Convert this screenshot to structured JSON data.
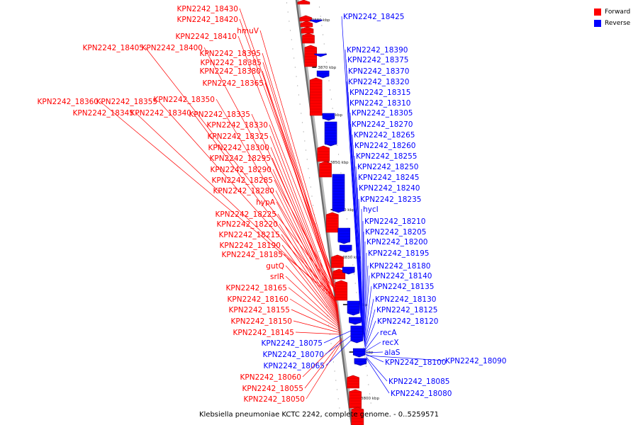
{
  "caption": "Klebsiella pneumoniae KCTC 2242, complete genome. - 0..5259571",
  "colors": {
    "forward": "#ff0000",
    "reverse": "#0000ff"
  },
  "legend": [
    {
      "label": "Forward",
      "color": "#ff0000"
    },
    {
      "label": "Reverse",
      "color": "#0000ff"
    }
  ],
  "ticks": [
    "3880 kbp",
    "3870 kbp",
    "3860 kbp",
    "3850 kbp",
    "3840 kbp",
    "3830 kbp",
    "3820 kbp",
    "3810 kbp",
    "3800 kbp"
  ],
  "forward_labels": [
    "KPN2242_18430",
    "KPN2242_18420",
    "hmuV",
    "KPN2242_18410",
    "KPN2242_18405",
    "KPN2242_18400",
    "KPN2242_18395",
    "KPN2242_18385",
    "KPN2242_18380",
    "KPN2242_18365",
    "KPN2242_18360",
    "KPN2242_18355",
    "KPN2242_18350",
    "KPN2242_18345",
    "KPN2242_18340",
    "KPN2242_18335",
    "KPN2242_18330",
    "KPN2242_18325",
    "KPN2242_18300",
    "KPN2242_18295",
    "KPN2242_18290",
    "KPN2242_18285",
    "KPN2242_18280",
    "hypA",
    "KPN2242_18225",
    "KPN2242_18220",
    "KPN2242_18215",
    "KPN2242_18190",
    "KPN2242_18185",
    "gutQ",
    "srlR",
    "KPN2242_18165",
    "KPN2242_18160",
    "KPN2242_18155",
    "KPN2242_18150",
    "KPN2242_18145",
    "KPN2242_18060",
    "KPN2242_18055",
    "KPN2242_18050"
  ],
  "reverse_labels": [
    "KPN2242_18425",
    "KPN2242_18390",
    "KPN2242_18375",
    "KPN2242_18370",
    "KPN2242_18320",
    "KPN2242_18315",
    "KPN2242_18310",
    "KPN2242_18305",
    "KPN2242_18270",
    "KPN2242_18265",
    "KPN2242_18260",
    "KPN2242_18255",
    "KPN2242_18250",
    "KPN2242_18245",
    "KPN2242_18240",
    "KPN2242_18235",
    "hycI",
    "KPN2242_18210",
    "KPN2242_18205",
    "KPN2242_18200",
    "KPN2242_18195",
    "KPN2242_18180",
    "KPN2242_18140",
    "KPN2242_18135",
    "KPN2242_18130",
    "KPN2242_18125",
    "KPN2242_18120",
    "recA",
    "recX",
    "alaS",
    "KPN2242_18100",
    "KPN2242_18090",
    "KPN2242_18085",
    "KPN2242_18080",
    "KPN2242_18075",
    "KPN2242_18070",
    "KPN2242_18065"
  ]
}
